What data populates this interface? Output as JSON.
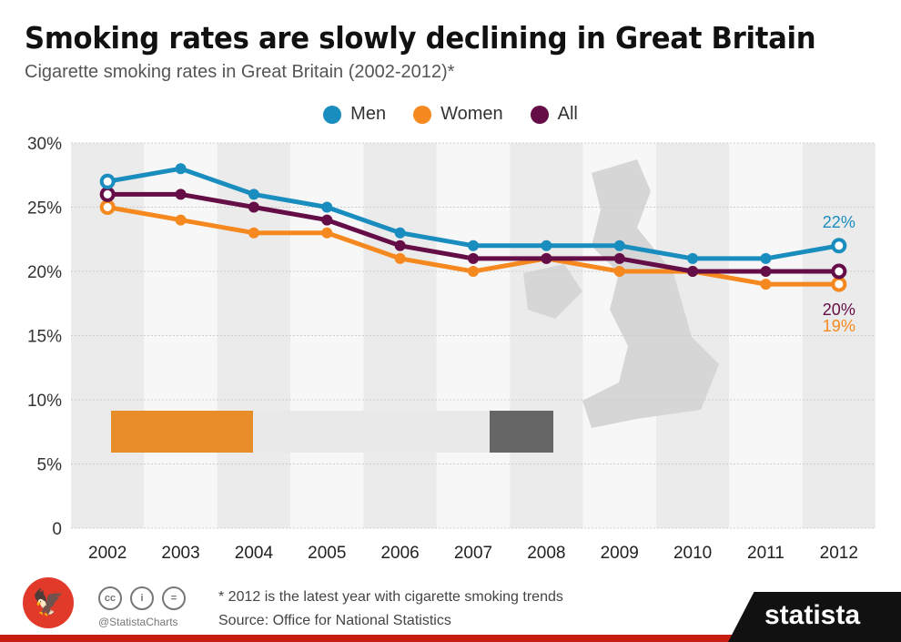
{
  "chart_data": {
    "type": "line",
    "title": "Smoking rates are slowly declining in Great Britain",
    "subtitle": "Cigarette smoking rates in Great Britain (2002-2012)*",
    "x": [
      "2002",
      "2003",
      "2004",
      "2005",
      "2006",
      "2007",
      "2008",
      "2009",
      "2010",
      "2011",
      "2012"
    ],
    "ylim": [
      0,
      30
    ],
    "yticks": [
      "0",
      "5%",
      "10%",
      "15%",
      "20%",
      "25%",
      "30%"
    ],
    "legend_placement": "top-center",
    "series": [
      {
        "name": "Men",
        "color": "#1a8dbf",
        "values": [
          27,
          28,
          26,
          25,
          23,
          22,
          22,
          22,
          21,
          21,
          22
        ],
        "end_label": "22%"
      },
      {
        "name": "Women",
        "color": "#f5891f",
        "values": [
          25,
          24,
          23,
          23,
          21,
          20,
          21,
          20,
          20,
          19,
          19
        ],
        "end_label": "19%"
      },
      {
        "name": "All",
        "color": "#650d46",
        "values": [
          26,
          26,
          25,
          24,
          22,
          21,
          21,
          21,
          20,
          20,
          20
        ],
        "end_label": "20%"
      }
    ]
  },
  "footer": {
    "note": "* 2012 is the latest year with cigarette smoking trends",
    "source": "Source: Office for National Statistics",
    "handle": "@StatistaCharts",
    "brand": "statista",
    "cc_icons": [
      "cc",
      "i",
      "="
    ]
  }
}
